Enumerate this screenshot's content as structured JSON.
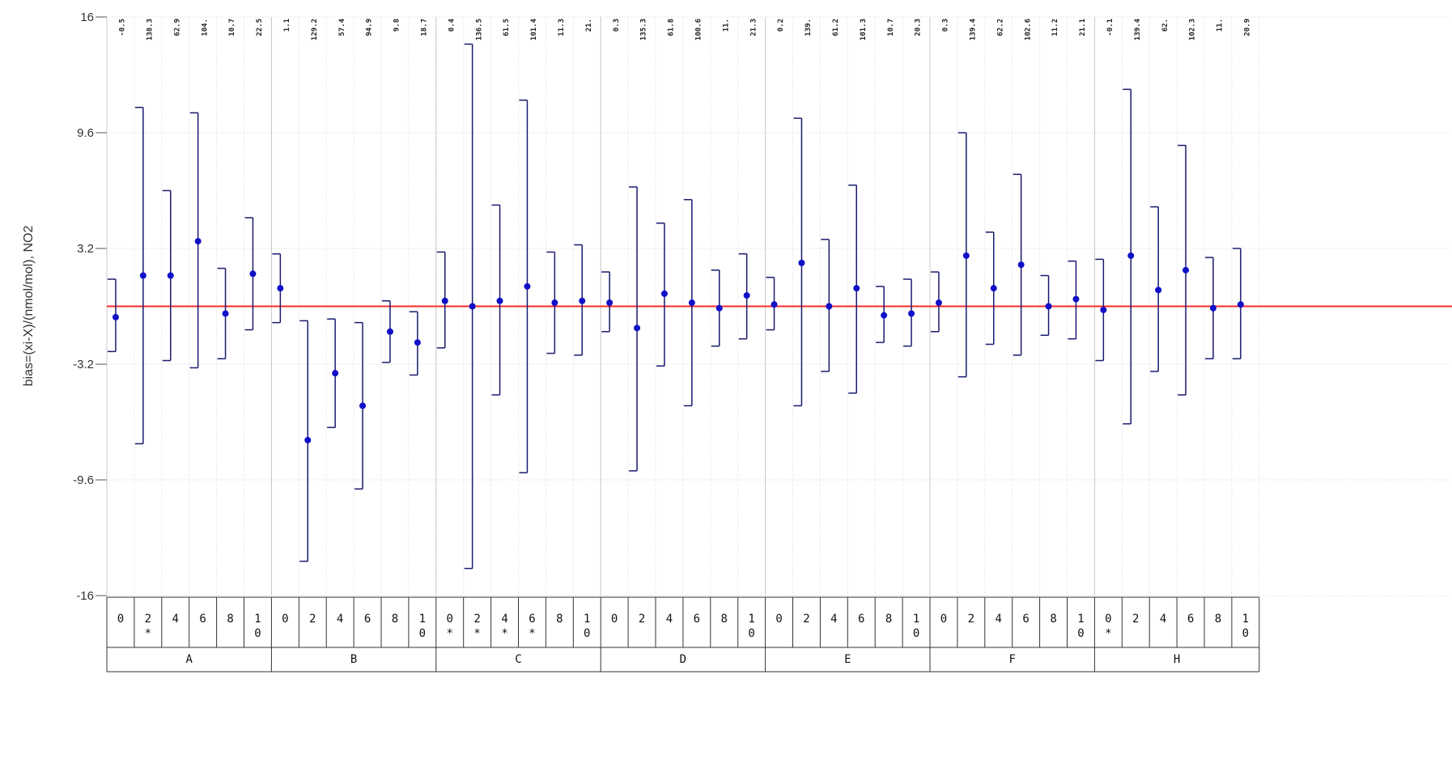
{
  "chart_data": {
    "type": "scatter",
    "title": "",
    "ylabel": "bias=(xi-X)/(nmol/mol), NO2",
    "ylim": [
      -16,
      16
    ],
    "yticks": [
      "16",
      "9.6",
      "3.2",
      "-3.2",
      "-9.6",
      "-16"
    ],
    "reference_line": 0,
    "colors": {
      "point": "#1010c8",
      "error_bar": "#1a1a70",
      "reference": "#ff2a2a",
      "grid": "#d9d9d9"
    },
    "labs": [
      {
        "name": "A",
        "points": [
          {
            "cond": [
              "0",
              ""
            ],
            "top": "-0.5",
            "y": -0.6,
            "lo": -2.5,
            "hi": 1.5
          },
          {
            "cond": [
              "2",
              "*"
            ],
            "top": "138.3",
            "y": 1.7,
            "lo": -7.6,
            "hi": 11.0
          },
          {
            "cond": [
              "4",
              ""
            ],
            "top": "62.9",
            "y": 1.7,
            "lo": -3.0,
            "hi": 6.4
          },
          {
            "cond": [
              "6",
              ""
            ],
            "top": "104.",
            "y": 3.6,
            "lo": -3.4,
            "hi": 10.7
          },
          {
            "cond": [
              "8",
              ""
            ],
            "top": "10.7",
            "y": -0.4,
            "lo": -2.9,
            "hi": 2.1
          },
          {
            "cond": [
              "1",
              "0"
            ],
            "top": "22.5",
            "y": 1.8,
            "lo": -1.3,
            "hi": 4.9
          }
        ]
      },
      {
        "name": "B",
        "points": [
          {
            "cond": [
              "0",
              ""
            ],
            "top": "1.1",
            "y": 1.0,
            "lo": -0.9,
            "hi": 2.9
          },
          {
            "cond": [
              "2",
              ""
            ],
            "top": "129.2",
            "y": -7.4,
            "lo": -14.1,
            "hi": -0.8
          },
          {
            "cond": [
              "4",
              ""
            ],
            "top": "57.4",
            "y": -3.7,
            "lo": -6.7,
            "hi": -0.7
          },
          {
            "cond": [
              "6",
              ""
            ],
            "top": "94.9",
            "y": -5.5,
            "lo": -10.1,
            "hi": -0.9
          },
          {
            "cond": [
              "8",
              ""
            ],
            "top": "9.8",
            "y": -1.4,
            "lo": -3.1,
            "hi": 0.3
          },
          {
            "cond": [
              "1",
              "0"
            ],
            "top": "18.7",
            "y": -2.0,
            "lo": -3.8,
            "hi": -0.3
          }
        ]
      },
      {
        "name": "C",
        "points": [
          {
            "cond": [
              "0",
              "*"
            ],
            "top": "0.4",
            "y": 0.3,
            "lo": -2.3,
            "hi": 3.0
          },
          {
            "cond": [
              "2",
              "*"
            ],
            "top": "136.5",
            "y": 0.0,
            "lo": -14.5,
            "hi": 14.5
          },
          {
            "cond": [
              "4",
              "*"
            ],
            "top": "61.5",
            "y": 0.3,
            "lo": -4.9,
            "hi": 5.6
          },
          {
            "cond": [
              "6",
              "*"
            ],
            "top": "101.4",
            "y": 1.1,
            "lo": -9.2,
            "hi": 11.4
          },
          {
            "cond": [
              "8",
              ""
            ],
            "top": "11.3",
            "y": 0.2,
            "lo": -2.6,
            "hi": 3.0
          },
          {
            "cond": [
              "1",
              "0"
            ],
            "top": "21.",
            "y": 0.3,
            "lo": -2.7,
            "hi": 3.4
          }
        ]
      },
      {
        "name": "D",
        "points": [
          {
            "cond": [
              "0",
              ""
            ],
            "top": "0.3",
            "y": 0.2,
            "lo": -1.4,
            "hi": 1.9
          },
          {
            "cond": [
              "2",
              ""
            ],
            "top": "135.3",
            "y": -1.2,
            "lo": -9.1,
            "hi": 6.6
          },
          {
            "cond": [
              "4",
              ""
            ],
            "top": "61.8",
            "y": 0.7,
            "lo": -3.3,
            "hi": 4.6
          },
          {
            "cond": [
              "6",
              ""
            ],
            "top": "100.6",
            "y": 0.2,
            "lo": -5.5,
            "hi": 5.9
          },
          {
            "cond": [
              "8",
              ""
            ],
            "top": "11.",
            "y": -0.1,
            "lo": -2.2,
            "hi": 2.0
          },
          {
            "cond": [
              "1",
              "0"
            ],
            "top": "21.3",
            "y": 0.6,
            "lo": -1.8,
            "hi": 2.9
          }
        ]
      },
      {
        "name": "E",
        "points": [
          {
            "cond": [
              "0",
              ""
            ],
            "top": "0.2",
            "y": 0.1,
            "lo": -1.3,
            "hi": 1.6
          },
          {
            "cond": [
              "2",
              ""
            ],
            "top": "139.",
            "y": 2.4,
            "lo": -5.5,
            "hi": 10.4
          },
          {
            "cond": [
              "4",
              ""
            ],
            "top": "61.2",
            "y": 0.0,
            "lo": -3.6,
            "hi": 3.7
          },
          {
            "cond": [
              "6",
              ""
            ],
            "top": "101.3",
            "y": 1.0,
            "lo": -4.8,
            "hi": 6.7
          },
          {
            "cond": [
              "8",
              ""
            ],
            "top": "10.7",
            "y": -0.5,
            "lo": -2.0,
            "hi": 1.1
          },
          {
            "cond": [
              "1",
              "0"
            ],
            "top": "20.3",
            "y": -0.4,
            "lo": -2.2,
            "hi": 1.5
          }
        ]
      },
      {
        "name": "F",
        "points": [
          {
            "cond": [
              "0",
              ""
            ],
            "top": "0.3",
            "y": 0.2,
            "lo": -1.4,
            "hi": 1.9
          },
          {
            "cond": [
              "2",
              ""
            ],
            "top": "139.4",
            "y": 2.8,
            "lo": -3.9,
            "hi": 9.6
          },
          {
            "cond": [
              "4",
              ""
            ],
            "top": "62.2",
            "y": 1.0,
            "lo": -2.1,
            "hi": 4.1
          },
          {
            "cond": [
              "6",
              ""
            ],
            "top": "102.6",
            "y": 2.3,
            "lo": -2.7,
            "hi": 7.3
          },
          {
            "cond": [
              "8",
              ""
            ],
            "top": "11.2",
            "y": 0.0,
            "lo": -1.6,
            "hi": 1.7
          },
          {
            "cond": [
              "1",
              "0"
            ],
            "top": "21.1",
            "y": 0.4,
            "lo": -1.8,
            "hi": 2.5
          }
        ]
      },
      {
        "name": "H",
        "points": [
          {
            "cond": [
              "0",
              "*"
            ],
            "top": "-0.1",
            "y": -0.2,
            "lo": -3.0,
            "hi": 2.6
          },
          {
            "cond": [
              "2",
              ""
            ],
            "top": "139.4",
            "y": 2.8,
            "lo": -6.5,
            "hi": 12.0
          },
          {
            "cond": [
              "4",
              ""
            ],
            "top": "62.",
            "y": 0.9,
            "lo": -3.6,
            "hi": 5.5
          },
          {
            "cond": [
              "6",
              ""
            ],
            "top": "102.3",
            "y": 2.0,
            "lo": -4.9,
            "hi": 8.9
          },
          {
            "cond": [
              "8",
              ""
            ],
            "top": "11.",
            "y": -0.1,
            "lo": -2.9,
            "hi": 2.7
          },
          {
            "cond": [
              "1",
              "0"
            ],
            "top": "20.9",
            "y": 0.1,
            "lo": -2.9,
            "hi": 3.2
          }
        ]
      }
    ]
  }
}
